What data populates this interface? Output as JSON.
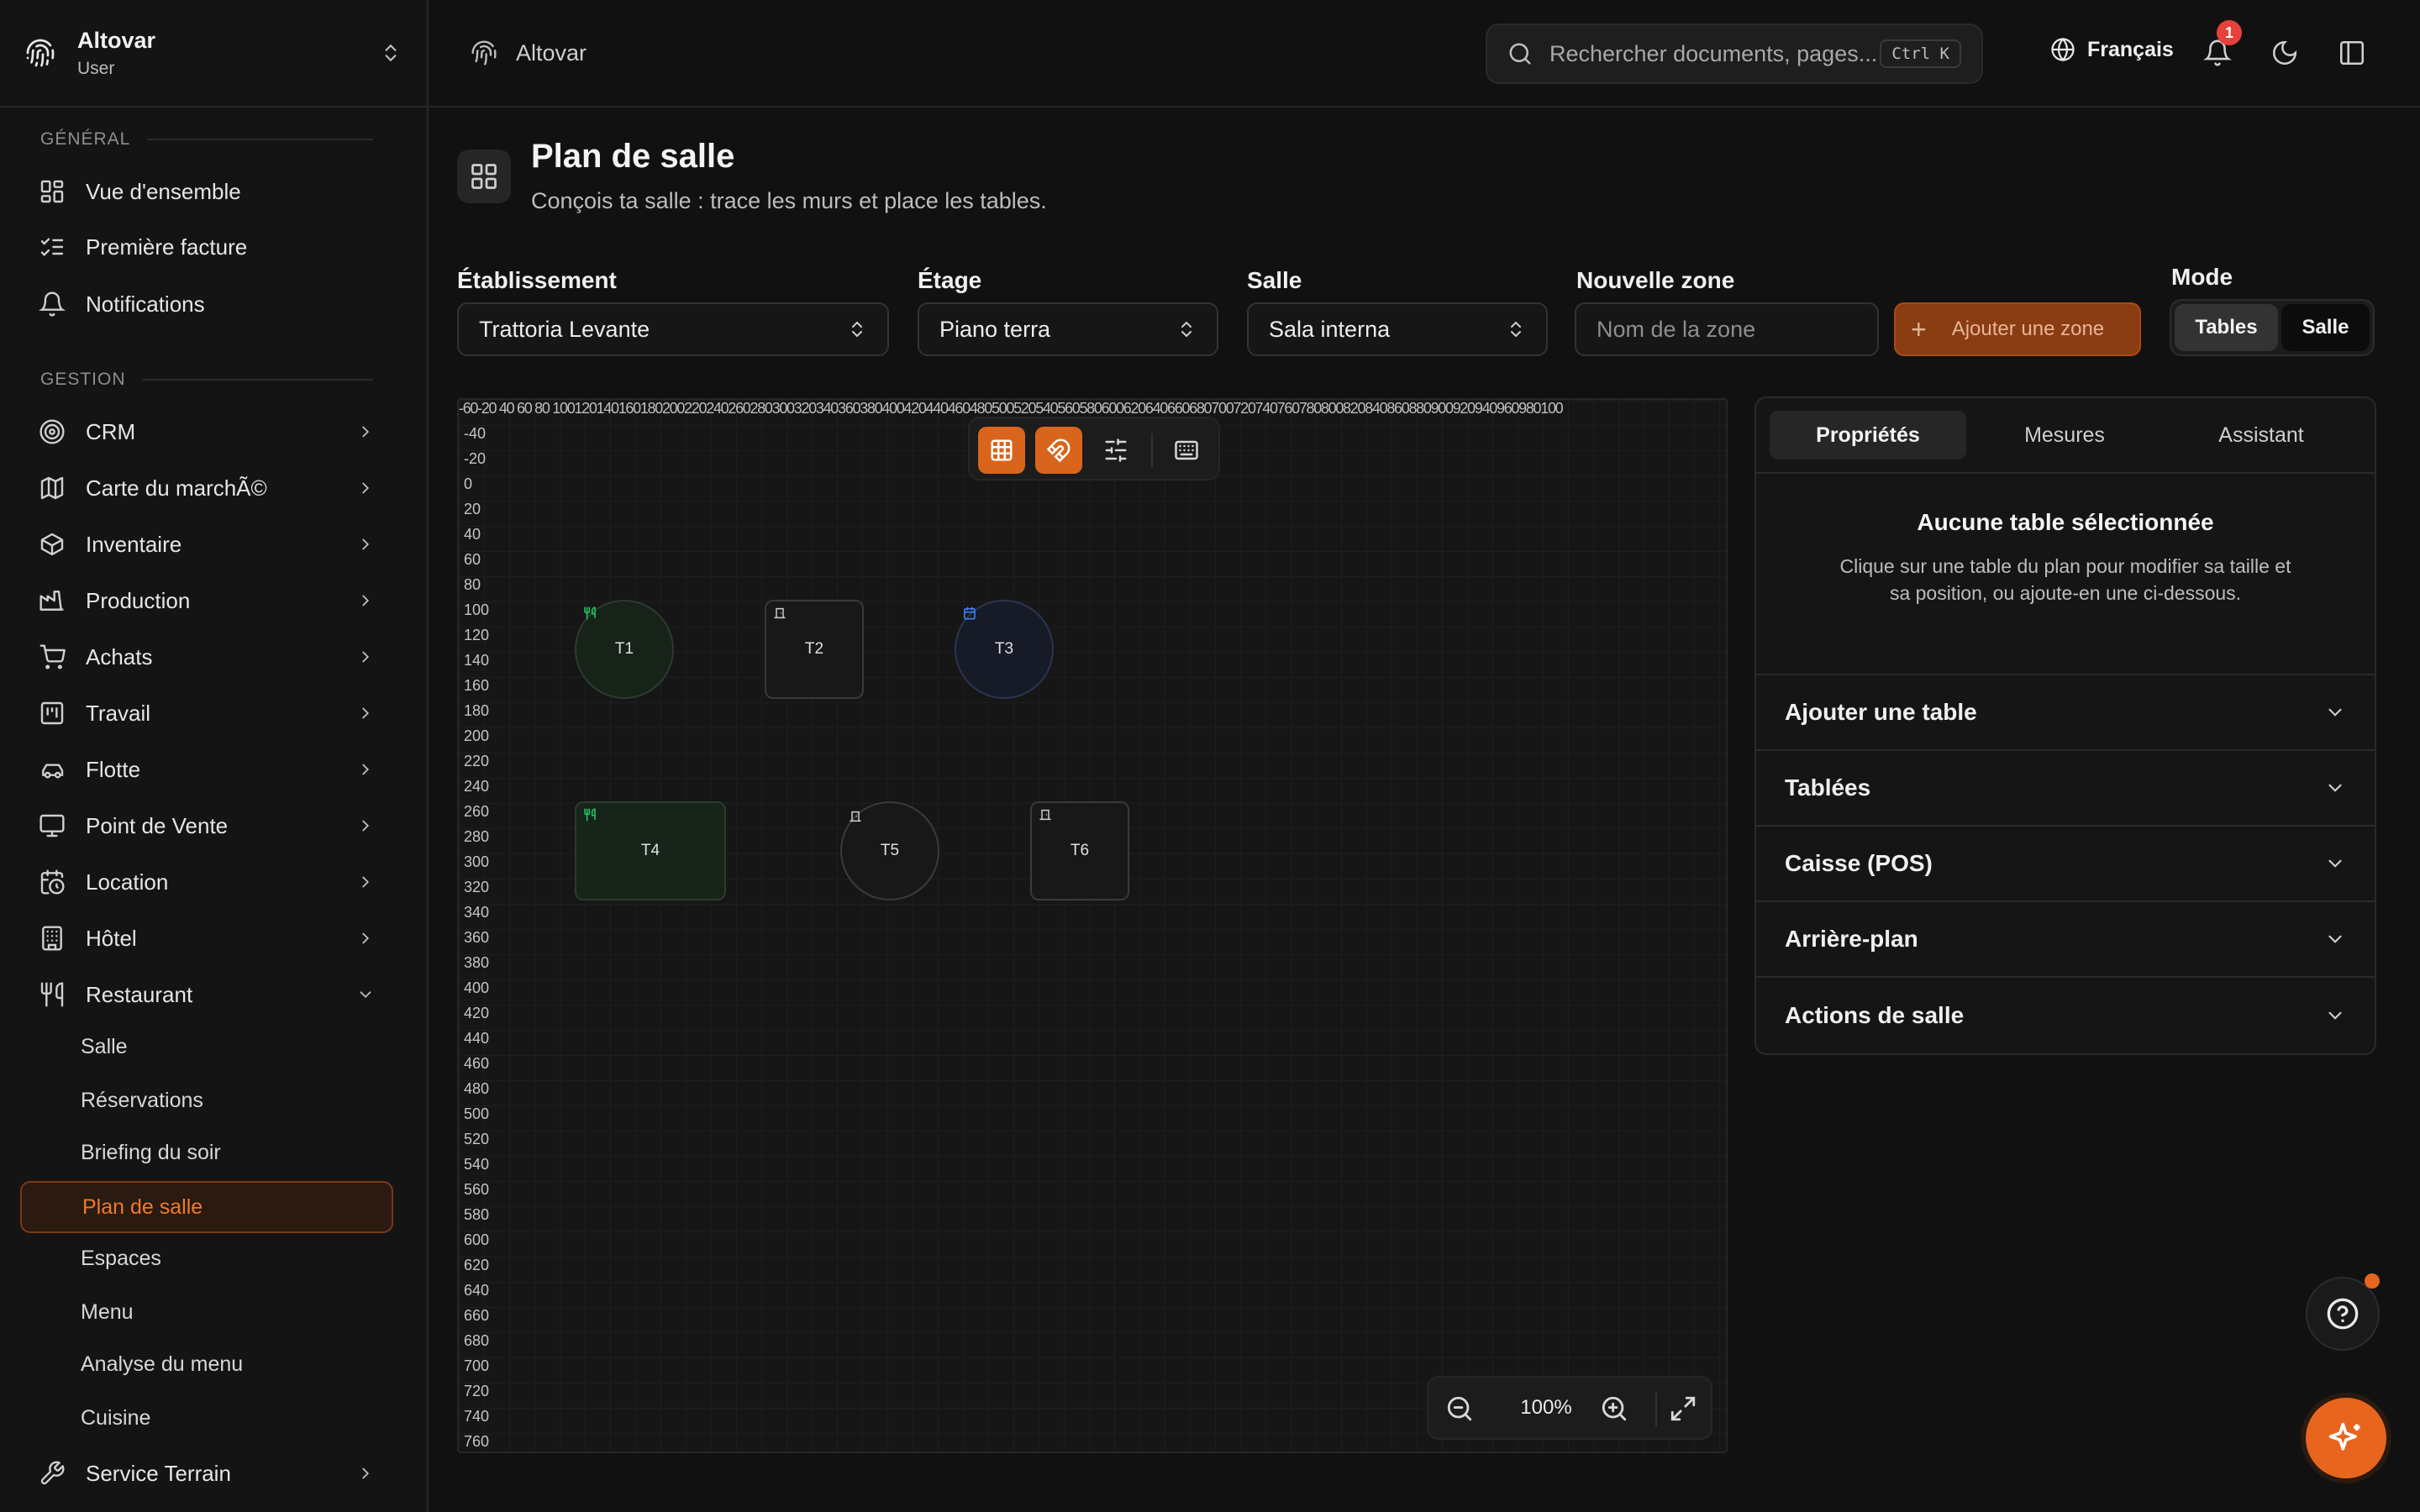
{
  "brand": {
    "name": "Altovar",
    "role": "User"
  },
  "sidebar": {
    "general_label": "GÉNÉRAL",
    "gestion_label": "GESTION",
    "general": [
      {
        "label": "Vue d'ensemble",
        "icon": "dashboard-icon"
      },
      {
        "label": "Première facture",
        "icon": "checklist-icon"
      },
      {
        "label": "Notifications",
        "icon": "bell-icon"
      }
    ],
    "gestion": [
      {
        "label": "CRM",
        "icon": "target-icon"
      },
      {
        "label": "Carte du marchÃ©",
        "icon": "map-icon"
      },
      {
        "label": "Inventaire",
        "icon": "box-icon"
      },
      {
        "label": "Production",
        "icon": "factory-icon"
      },
      {
        "label": "Achats",
        "icon": "cart-icon"
      },
      {
        "label": "Travail",
        "icon": "kanban-icon"
      },
      {
        "label": "Flotte",
        "icon": "car-icon"
      },
      {
        "label": "Point de Vente",
        "icon": "monitor-icon"
      },
      {
        "label": "Location",
        "icon": "calendar-clock-icon"
      },
      {
        "label": "Hôtel",
        "icon": "building-icon"
      },
      {
        "label": "Restaurant",
        "icon": "utensils-icon"
      }
    ],
    "restaurant_sub": [
      {
        "label": "Salle"
      },
      {
        "label": "Réservations"
      },
      {
        "label": "Briefing du soir"
      },
      {
        "label": "Plan de salle",
        "active": true
      },
      {
        "label": "Espaces"
      },
      {
        "label": "Menu"
      },
      {
        "label": "Analyse du menu"
      },
      {
        "label": "Cuisine"
      }
    ],
    "service_terrain": {
      "label": "Service Terrain",
      "icon": "wrench-icon"
    }
  },
  "topbar": {
    "breadcrumb": "Altovar",
    "search_placeholder": "Rechercher documents, pages...",
    "search_shortcut": "Ctrl K",
    "language": "Français",
    "notification_count": "1"
  },
  "page": {
    "title": "Plan de salle",
    "subtitle": "Conçois ta salle : trace les murs et place les tables."
  },
  "filters": {
    "etablissement": {
      "label": "Établissement",
      "value": "Trattoria Levante"
    },
    "etage": {
      "label": "Étage",
      "value": "Piano terra"
    },
    "salle": {
      "label": "Salle",
      "value": "Sala interna"
    },
    "zone": {
      "label": "Nouvelle zone",
      "placeholder": "Nom de la zone",
      "add_button": "Ajouter une zone"
    },
    "mode": {
      "label": "Mode",
      "options": [
        "Tables",
        "Salle"
      ],
      "selected": "Tables"
    }
  },
  "canvas": {
    "ruler_top": "-60-20 40 60 80 100120140160180200220240260280300320340360380400420440460480500520540560580600620640660680700720740760780800820840860880900920940960980100",
    "ruler_left": [
      "-40",
      "-20",
      "0",
      "20",
      "40",
      "60",
      "80",
      "100",
      "120",
      "140",
      "160",
      "180",
      "200",
      "220",
      "240",
      "260",
      "280",
      "300",
      "320",
      "340",
      "360",
      "380",
      "400",
      "420",
      "440",
      "460",
      "480",
      "500",
      "520",
      "540",
      "560",
      "580",
      "600",
      "620",
      "640",
      "660",
      "680",
      "700",
      "720",
      "740",
      "760"
    ],
    "tables": [
      {
        "label": "T1",
        "shape": "round",
        "status": "occupied"
      },
      {
        "label": "T2",
        "shape": "square",
        "status": "free"
      },
      {
        "label": "T3",
        "shape": "round",
        "status": "reserved"
      },
      {
        "label": "T4",
        "shape": "rect",
        "status": "occupied"
      },
      {
        "label": "T5",
        "shape": "round",
        "status": "free"
      },
      {
        "label": "T6",
        "shape": "square",
        "status": "free"
      }
    ],
    "zoom": "100%",
    "colors": {
      "occupied": "#22c55e",
      "reserved": "#3b82f6",
      "accent": "#e8651e"
    }
  },
  "panel": {
    "tabs": [
      "Propriétés",
      "Mesures",
      "Assistant"
    ],
    "active_tab": "Propriétés",
    "empty_title": "Aucune table sélectionnée",
    "empty_text": "Clique sur une table du plan pour modifier sa taille et sa position, ou ajoute-en une ci-dessous.",
    "sections": [
      "Ajouter une table",
      "Tablées",
      "Caisse (POS)",
      "Arrière-plan",
      "Actions de salle"
    ]
  }
}
